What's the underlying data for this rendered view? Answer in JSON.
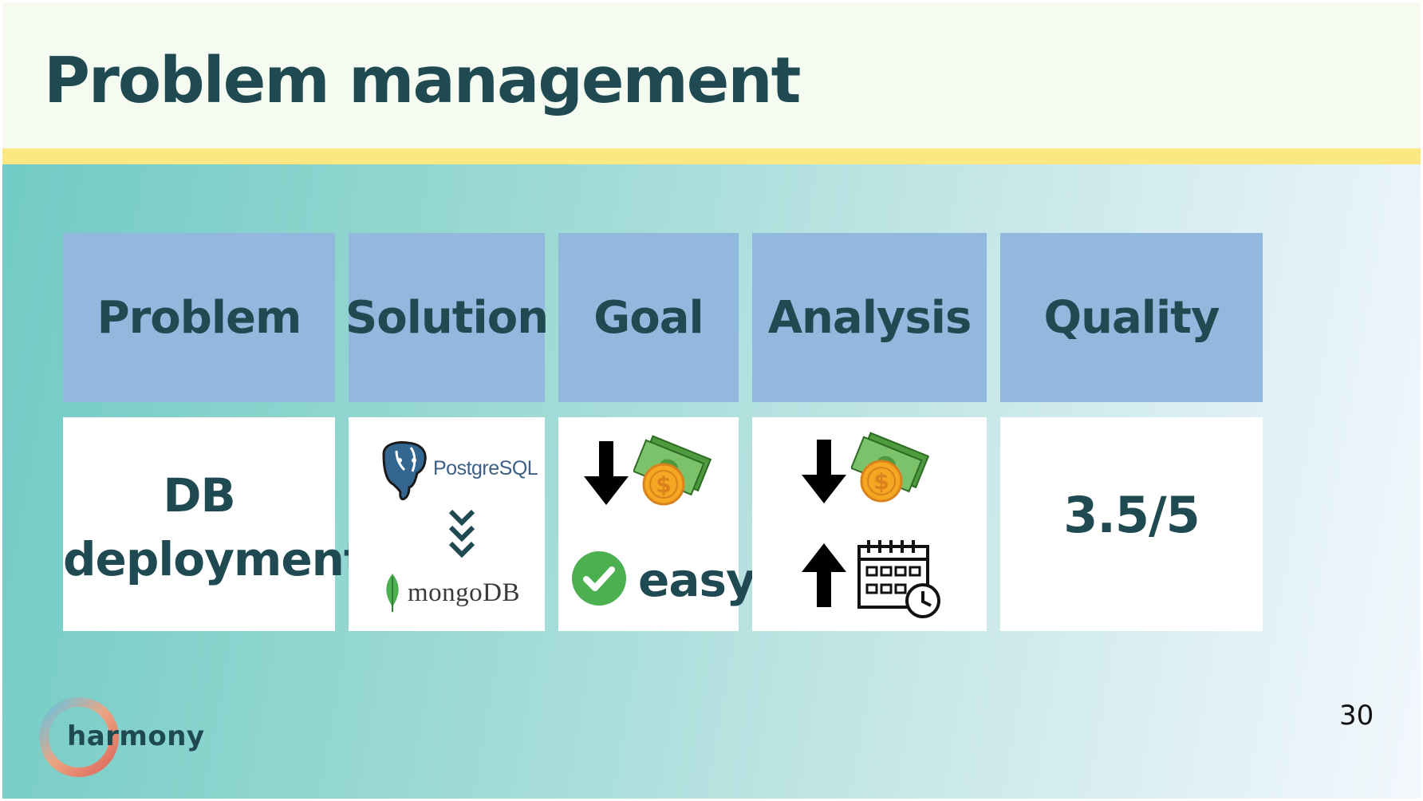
{
  "slide": {
    "title": "Problem management",
    "page_number": "30",
    "brand": "harmony"
  },
  "colors": {
    "title_text": "#1f4a52",
    "header_bg": "#f6fbf2",
    "accent_bar": "#fbe883",
    "table_header_bg": "#93b8de",
    "table_body_bg": "#ffffff",
    "gradient_start": "#6fcac3",
    "gradient_end": "#f3f8fd",
    "check_green": "#4caf50"
  },
  "table": {
    "headers": [
      "Problem",
      "Solution",
      "Goal",
      "Analysis",
      "Quality"
    ],
    "problem": {
      "lines": [
        "DB",
        "deployment"
      ]
    },
    "solution": {
      "from_name": "PostgreSQL",
      "from_icon": "postgresql-elephant-icon",
      "transition_icon": "double-chevron-down-icon",
      "to_name": "mongoDB",
      "to_icon": "mongodb-leaf-icon"
    },
    "goal": {
      "icons": [
        "arrow-down-icon",
        "money-bills-icon",
        "check-circle-icon"
      ],
      "label": "easy"
    },
    "analysis": {
      "icons": [
        "arrow-down-icon",
        "money-bills-icon",
        "arrow-up-icon",
        "calendar-clock-icon"
      ]
    },
    "quality": {
      "value": "3.5/5"
    }
  }
}
